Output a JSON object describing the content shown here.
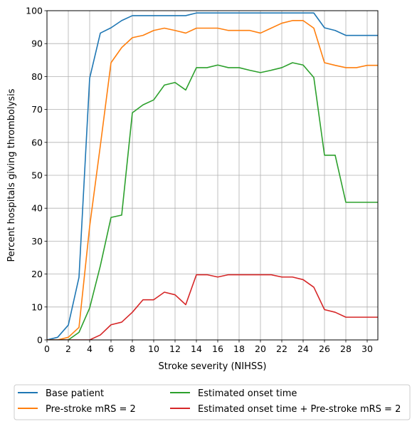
{
  "chart_data": {
    "type": "line",
    "xlabel": "Stroke severity (NIHSS)",
    "ylabel": "Percent hospitals giving thrombolysis",
    "xlim": [
      0,
      31
    ],
    "ylim": [
      0,
      100
    ],
    "xticks": [
      0,
      2,
      4,
      6,
      8,
      10,
      12,
      14,
      16,
      18,
      20,
      22,
      24,
      26,
      28,
      30
    ],
    "yticks": [
      0,
      10,
      20,
      30,
      40,
      50,
      60,
      70,
      80,
      90,
      100
    ],
    "grid": true,
    "legend_position": "below",
    "x": [
      0,
      1,
      2,
      3,
      4,
      5,
      6,
      7,
      8,
      9,
      10,
      11,
      12,
      13,
      14,
      15,
      16,
      17,
      18,
      19,
      20,
      21,
      22,
      23,
      24,
      25,
      26,
      27,
      28,
      29,
      30,
      31
    ],
    "series": [
      {
        "name": "Base patient",
        "color": "#1f77b4",
        "values": [
          0,
          0.8,
          4.5,
          19,
          79.5,
          93.2,
          94.8,
          97,
          98.5,
          98.5,
          98.5,
          98.5,
          98.5,
          98.5,
          99.3,
          99.3,
          99.3,
          99.3,
          99.3,
          99.3,
          99.3,
          99.3,
          99.3,
          99.3,
          99.3,
          99.3,
          94.8,
          94,
          92.5,
          92.5,
          92.5,
          92.5
        ]
      },
      {
        "name": "Pre-stroke mRS = 2",
        "color": "#ff7f0e",
        "values": [
          0,
          0,
          0.8,
          3.8,
          34.5,
          59,
          84.2,
          88.8,
          91.8,
          92.5,
          94,
          94.7,
          94,
          93.2,
          94.7,
          94.7,
          94.7,
          94,
          94,
          94,
          93.2,
          94.7,
          96.2,
          97,
          97,
          94.7,
          84.2,
          83.4,
          82.7,
          82.7,
          83.4,
          83.4
        ]
      },
      {
        "name": "Estimated onset time",
        "color": "#2ca02c",
        "values": [
          0,
          0,
          0,
          2.3,
          9.7,
          22.5,
          37.2,
          37.9,
          69,
          71.4,
          72.9,
          77.4,
          78.2,
          75.9,
          82.7,
          82.7,
          83.5,
          82.7,
          82.7,
          81.9,
          81.2,
          81.9,
          82.7,
          84.2,
          83.5,
          79.7,
          56.1,
          56.1,
          41.8,
          41.8,
          41.8,
          41.8
        ]
      },
      {
        "name": "Estimated onset time + Pre-stroke mRS = 2",
        "color": "#d62728",
        "values": [
          0,
          0,
          0,
          0,
          0,
          1.5,
          4.6,
          5.4,
          8.4,
          12.2,
          12.2,
          14.5,
          13.7,
          10.7,
          19.8,
          19.8,
          19.1,
          19.8,
          19.8,
          19.8,
          19.8,
          19.8,
          19.1,
          19.1,
          18.3,
          16,
          9.2,
          8.4,
          6.9,
          6.9,
          6.9,
          6.9
        ]
      }
    ]
  }
}
